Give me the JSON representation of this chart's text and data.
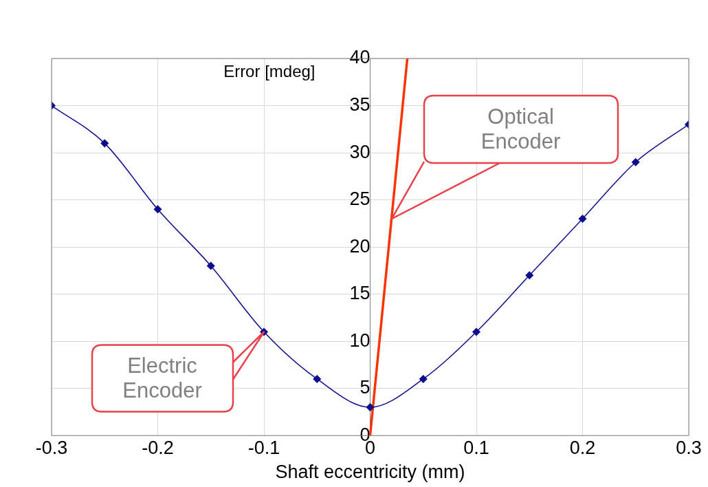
{
  "chart_data": {
    "type": "line",
    "xlabel": "Shaft eccentricity (mm)",
    "ylabel": "Error [mdeg]",
    "xlim": [
      -0.3,
      0.3
    ],
    "xticks": [
      -0.3,
      -0.2,
      -0.1,
      0,
      0.1,
      0.2,
      0.3
    ],
    "ylim": [
      0,
      40
    ],
    "yticks": [
      0,
      5,
      10,
      15,
      20,
      25,
      30,
      35,
      40
    ],
    "grid": true,
    "series": [
      {
        "type": "line",
        "color": "#0c0c8c",
        "marker": "diamond",
        "x": [
          -0.3,
          -0.25,
          -0.2,
          -0.15,
          -0.1,
          -0.05,
          0,
          0.05,
          0.1,
          0.15,
          0.2,
          0.25,
          0.3
        ],
        "values": [
          35,
          31,
          24,
          18,
          11,
          6,
          3,
          6,
          11,
          17,
          23,
          29,
          33
        ]
      },
      {
        "type": "line",
        "color": "#ff3300",
        "marker": "none",
        "x": [
          0,
          0.035
        ],
        "values": [
          0,
          40
        ]
      }
    ],
    "annotations": [
      "Electric Encoder",
      "Optical Encoder"
    ]
  }
}
